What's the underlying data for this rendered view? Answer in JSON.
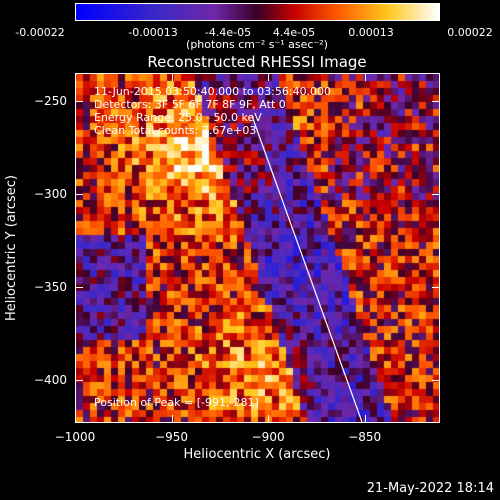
{
  "colorbar": {
    "ticks": [
      "-0.00022",
      "-0.00013",
      "-4.4e-05",
      "4.4e-05",
      "0.00013",
      "0.00022"
    ],
    "units": "(photons cm⁻² s⁻¹ asec⁻²)"
  },
  "title": "Reconstructed RHESSI Image",
  "info": {
    "time": "11-Jun-2015 03:50:40.000 to 03:56:40.000",
    "detectors": "Detectors: 3F 5F 6F 7F 8F 9F, Att 0",
    "energy": "Energy Range: 25.0 - 50.0 keV",
    "clean": "Clean     Total counts: 7.67e+03"
  },
  "peak": "Position of Peak = [-991,-281]",
  "axes": {
    "xlabel": "Heliocentric X (arcsec)",
    "ylabel": "Heliocentric Y (arcsec)",
    "xticks": [
      {
        "label": "−1000",
        "value": -1000
      },
      {
        "label": "−950",
        "value": -950
      },
      {
        "label": "−900",
        "value": -900
      },
      {
        "label": "−850",
        "value": -850
      }
    ],
    "yticks": [
      {
        "label": "−250",
        "value": -250
      },
      {
        "label": "−300",
        "value": -300
      },
      {
        "label": "−350",
        "value": -350
      },
      {
        "label": "−400",
        "value": -400
      }
    ],
    "xlim": [
      -1000,
      -811
    ],
    "ylim": [
      -423,
      -235
    ]
  },
  "timestamp": "21-May-2022 18:14"
}
